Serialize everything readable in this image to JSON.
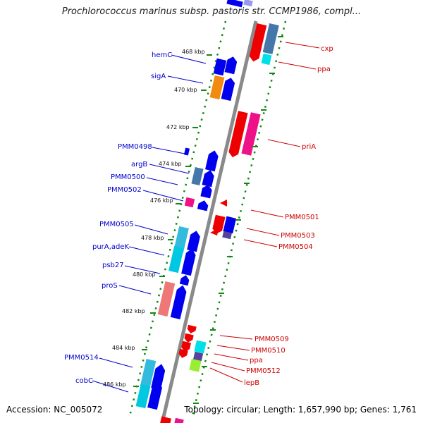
{
  "title": "Prochlorococcus marinus subsp. pastoris str. CCMP1986, compl...",
  "footer": {
    "accession": "Accession: NC_005072",
    "topology": "Topology: circular; Length: 1,657,990 bp; Genes: 1,761"
  },
  "ticks": [
    "468 kbp",
    "470 kbp",
    "472 kbp",
    "474 kbp",
    "476 kbp",
    "478 kbp",
    "480 kbp",
    "482 kbp",
    "484 kbp",
    "486 kbp"
  ],
  "labels_left": [
    "hemC",
    "sigA",
    "PMM0498",
    "argB",
    "PMM0500",
    "PMM0502",
    "PMM0505",
    "purA,adeK",
    "psb27",
    "proS",
    "PMM0514",
    "cobC"
  ],
  "labels_right": [
    "cxp",
    "ppa",
    "priA",
    "PMM0501",
    "PMM0503",
    "PMM0504",
    "PMM0509",
    "PMM0510",
    "ppa",
    "PMM0512",
    "lepB"
  ],
  "colors": {
    "blue": "#0000ee",
    "red": "#ee0000",
    "orange": "#f08a10",
    "pink": "#ee1188",
    "steel": "#4477aa",
    "cyan": "#00c8e0",
    "lightred": "#ee7777",
    "green": "#99ee33",
    "purple": "#554499",
    "axis": "#888888",
    "dots": "#118811"
  }
}
